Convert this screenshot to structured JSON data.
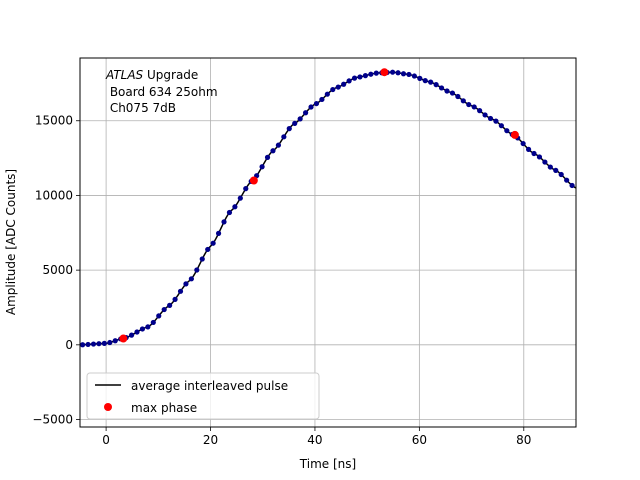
{
  "chart_data": {
    "type": "scatter",
    "title": "",
    "xlabel": "Time [ns]",
    "ylabel": "Amplitude [ADC Counts]",
    "xlim": [
      -5,
      90
    ],
    "ylim": [
      -5500,
      19200
    ],
    "xticks": [
      0,
      20,
      40,
      60,
      80
    ],
    "yticks": [
      -5000,
      0,
      5000,
      10000,
      15000
    ],
    "grid": true,
    "annotation": {
      "lines": [
        "ATLAS Upgrade",
        " Board 634 25ohm",
        " Ch075 7dB"
      ],
      "italic_part": "ATLAS",
      "normal_part": " Upgrade"
    },
    "legend": {
      "placement": "lower-left",
      "entries": [
        {
          "label": "average interleaved pulse",
          "marker": "line",
          "color": "#000000"
        },
        {
          "label": "max phase",
          "marker": "circle",
          "color": "#ff0000"
        }
      ]
    },
    "series": [
      {
        "name": "average interleaved pulse",
        "style": "line+points",
        "line_color": "#000000",
        "point_color": "#00008b",
        "x_start": -4.5,
        "x_step": 1.0416667,
        "count": 91,
        "x_points": [
          -5,
          0,
          3.5,
          8,
          12,
          16,
          20,
          24,
          28,
          32,
          36,
          40,
          44,
          48,
          52,
          55,
          58,
          62,
          66,
          70,
          74,
          78,
          82,
          86,
          90
        ],
        "y_points": [
          0,
          100,
          450,
          1200,
          2600,
          4300,
          6600,
          9000,
          11000,
          13000,
          14800,
          16100,
          17200,
          17900,
          18200,
          18250,
          18100,
          17600,
          16900,
          16000,
          15100,
          14050,
          12800,
          11700,
          10500
        ]
      },
      {
        "name": "max phase",
        "style": "points",
        "color": "#ff0000",
        "x": [
          3.3,
          28.3,
          53.3,
          78.3
        ],
        "y": [
          420,
          11000,
          18250,
          14050
        ]
      }
    ]
  }
}
